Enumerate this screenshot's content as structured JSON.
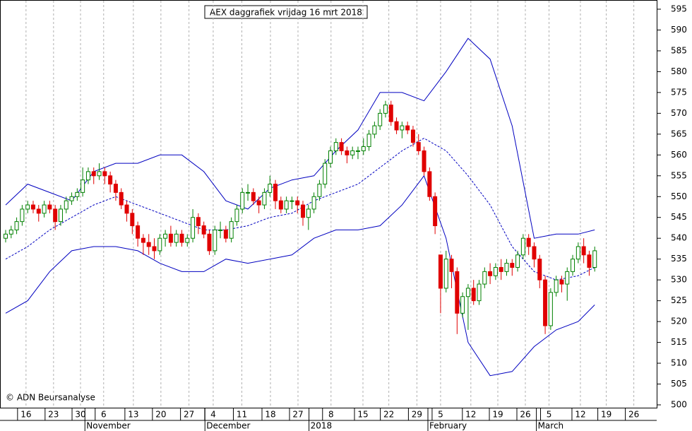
{
  "chart_data": {
    "type": "candlestick",
    "title": "AEX daggrafiek vrijdag 16 mrt 2018",
    "annotation": "© ADN Beursanalyse",
    "xlim": [
      -1,
      118
    ],
    "ylim": [
      500,
      595
    ],
    "yticks": [
      500,
      505,
      510,
      515,
      520,
      525,
      530,
      535,
      540,
      545,
      550,
      555,
      560,
      565,
      570,
      575,
      580,
      585,
      590,
      595
    ],
    "xticks": [
      {
        "value": 3.7,
        "label": "16"
      },
      {
        "value": 8.7,
        "label": "23"
      },
      {
        "value": 13.6,
        "label": "30"
      },
      {
        "value": 17.8,
        "label": "6"
      },
      {
        "value": 23.2,
        "label": "13"
      },
      {
        "value": 28.2,
        "label": "20"
      },
      {
        "value": 33.3,
        "label": "27"
      },
      {
        "value": 37.7,
        "label": "4"
      },
      {
        "value": 42.9,
        "label": "11"
      },
      {
        "value": 48.1,
        "label": "18"
      },
      {
        "value": 53.1,
        "label": "27"
      },
      {
        "value": 59.1,
        "label": "8"
      },
      {
        "value": 64.9,
        "label": "15"
      },
      {
        "value": 69.6,
        "label": "22"
      },
      {
        "value": 74.7,
        "label": "29"
      },
      {
        "value": 79.0,
        "label": "5"
      },
      {
        "value": 84.5,
        "label": "12"
      },
      {
        "value": 89.4,
        "label": "19"
      },
      {
        "value": 94.4,
        "label": "26"
      },
      {
        "value": 98.7,
        "label": "5"
      },
      {
        "value": 104.4,
        "label": "12"
      },
      {
        "value": 109.1,
        "label": "19"
      },
      {
        "value": 114.1,
        "label": "26"
      }
    ],
    "month_ticks": [
      {
        "value": 14.4,
        "label": "November"
      },
      {
        "value": 36.2,
        "label": "December"
      },
      {
        "value": 55.1,
        "label": "2018"
      },
      {
        "value": 76.7,
        "label": "February"
      },
      {
        "value": 96.4,
        "label": "March"
      }
    ],
    "grid": true,
    "up_color": "#008000",
    "down_color": "#e00000",
    "candles": [
      [
        540,
        542,
        539,
        541
      ],
      [
        541,
        543,
        540,
        542
      ],
      [
        542,
        545,
        541,
        544
      ],
      [
        544,
        548,
        543,
        547
      ],
      [
        547,
        549,
        546,
        548
      ],
      [
        548,
        549,
        546,
        547
      ],
      [
        547,
        548,
        544,
        546
      ],
      [
        546,
        549,
        545,
        548
      ],
      [
        548,
        549,
        546,
        547
      ],
      [
        547,
        548,
        542,
        544
      ],
      [
        544,
        548,
        543,
        547
      ],
      [
        547,
        550,
        546,
        549
      ],
      [
        549,
        551,
        548,
        550
      ],
      [
        550,
        552,
        549,
        551
      ],
      [
        551,
        557,
        550,
        554
      ],
      [
        554,
        557,
        553,
        556
      ],
      [
        556,
        557,
        553,
        555
      ],
      [
        555,
        558,
        554,
        556
      ],
      [
        556,
        557,
        553,
        555
      ],
      [
        555,
        556,
        551,
        553
      ],
      [
        553,
        554,
        549,
        551
      ],
      [
        551,
        552,
        547,
        548
      ],
      [
        548,
        549,
        544,
        546
      ],
      [
        546,
        547,
        541,
        543
      ],
      [
        543,
        544,
        538,
        540
      ],
      [
        540,
        541,
        536,
        539
      ],
      [
        539,
        541,
        536,
        538
      ],
      [
        538,
        540,
        535,
        537
      ],
      [
        537,
        541,
        536,
        540
      ],
      [
        540,
        542,
        538,
        541
      ],
      [
        541,
        543,
        538,
        539
      ],
      [
        539,
        542,
        538,
        541
      ],
      [
        541,
        542,
        538,
        539
      ],
      [
        539,
        541,
        538,
        540
      ],
      [
        540,
        547,
        539,
        545
      ],
      [
        545,
        546,
        541,
        543
      ],
      [
        543,
        544,
        540,
        541
      ],
      [
        541,
        542,
        536,
        537
      ],
      [
        537,
        543,
        536,
        542
      ],
      [
        542,
        544,
        540,
        542
      ],
      [
        542,
        543,
        539,
        540
      ],
      [
        540,
        545,
        539,
        544
      ],
      [
        544,
        548,
        543,
        547
      ],
      [
        547,
        552,
        546,
        551
      ],
      [
        551,
        553,
        549,
        551
      ],
      [
        551,
        552,
        548,
        549
      ],
      [
        549,
        550,
        546,
        548
      ],
      [
        548,
        552,
        547,
        551
      ],
      [
        551,
        555,
        550,
        553
      ],
      [
        553,
        554,
        547,
        549
      ],
      [
        549,
        550,
        546,
        547
      ],
      [
        547,
        550,
        546,
        549
      ],
      [
        549,
        550,
        547,
        549
      ],
      [
        549,
        550,
        546,
        548
      ],
      [
        548,
        549,
        543,
        545
      ],
      [
        545,
        548,
        542,
        547
      ],
      [
        547,
        551,
        546,
        550
      ],
      [
        550,
        554,
        549,
        553
      ],
      [
        553,
        559,
        552,
        558
      ],
      [
        558,
        562,
        557,
        561
      ],
      [
        561,
        564,
        560,
        563
      ],
      [
        563,
        564,
        560,
        561
      ],
      [
        561,
        562,
        558,
        560
      ],
      [
        560,
        562,
        559,
        561
      ],
      [
        561,
        562,
        559,
        561
      ],
      [
        561,
        564,
        560,
        562
      ],
      [
        562,
        566,
        561,
        565
      ],
      [
        565,
        568,
        564,
        567
      ],
      [
        567,
        571,
        566,
        570
      ],
      [
        570,
        573,
        569,
        572
      ],
      [
        572,
        573,
        567,
        568
      ],
      [
        568,
        569,
        565,
        566
      ],
      [
        566,
        568,
        564,
        567
      ],
      [
        567,
        568,
        565,
        566
      ],
      [
        566,
        567,
        562,
        563
      ],
      [
        563,
        565,
        560,
        561
      ],
      [
        561,
        562,
        555,
        556
      ],
      [
        556,
        557,
        549,
        550
      ],
      [
        550,
        551,
        541,
        543
      ],
      [
        536,
        536,
        522,
        528
      ],
      [
        528,
        537,
        527,
        535
      ],
      [
        535,
        536,
        528,
        532
      ],
      [
        532,
        533,
        517,
        522
      ],
      [
        522,
        527,
        521,
        526
      ],
      [
        526,
        529,
        518,
        528
      ],
      [
        528,
        530,
        524,
        525
      ],
      [
        525,
        530,
        524,
        529
      ],
      [
        529,
        533,
        528,
        532
      ],
      [
        532,
        534,
        529,
        531
      ],
      [
        531,
        534,
        530,
        533
      ],
      [
        533,
        535,
        530,
        532
      ],
      [
        532,
        535,
        531,
        534
      ],
      [
        534,
        535,
        531,
        533
      ],
      [
        533,
        537,
        532,
        536
      ],
      [
        536,
        541,
        535,
        540
      ],
      [
        540,
        541,
        536,
        538
      ],
      [
        538,
        539,
        533,
        535
      ],
      [
        535,
        536,
        528,
        530
      ],
      [
        530,
        531,
        517,
        519
      ],
      [
        519,
        528,
        518,
        527
      ],
      [
        527,
        531,
        526,
        530
      ],
      [
        530,
        531,
        527,
        529
      ],
      [
        529,
        533,
        525,
        532
      ],
      [
        532,
        536,
        531,
        535
      ],
      [
        535,
        539,
        534,
        538
      ],
      [
        538,
        540,
        534,
        536
      ],
      [
        536,
        537,
        531,
        533
      ],
      [
        533,
        538,
        532,
        537
      ]
    ],
    "band_x": [
      0,
      4,
      8,
      12,
      16,
      20,
      24,
      28,
      32,
      36,
      40,
      44,
      48,
      52,
      56,
      60,
      64,
      68,
      72,
      76,
      80,
      84,
      88,
      92,
      96,
      100,
      104,
      107
    ],
    "series": [
      {
        "color": "#0000c0",
        "style": "solid",
        "values": [
          548,
          553,
          551,
          549,
          556,
          558,
          558,
          560,
          560,
          556,
          549,
          547,
          552,
          554,
          555,
          561,
          566,
          575,
          575,
          573,
          580,
          588,
          583,
          567,
          540,
          541,
          541,
          542
        ]
      },
      {
        "color": "#0000c0",
        "style": "dashed",
        "values": [
          535,
          538,
          542,
          545,
          548,
          550,
          548,
          546,
          544,
          542,
          542,
          543,
          545,
          546,
          549,
          551,
          553,
          557,
          561,
          564,
          561,
          555,
          548,
          538,
          532,
          530,
          531,
          533
        ]
      },
      {
        "color": "#0000c0",
        "style": "solid",
        "values": [
          522,
          525,
          532,
          537,
          538,
          538,
          537,
          534,
          532,
          532,
          535,
          534,
          535,
          536,
          540,
          542,
          542,
          543,
          548,
          555,
          540,
          515,
          507,
          508,
          514,
          518,
          520,
          524
        ]
      }
    ]
  }
}
